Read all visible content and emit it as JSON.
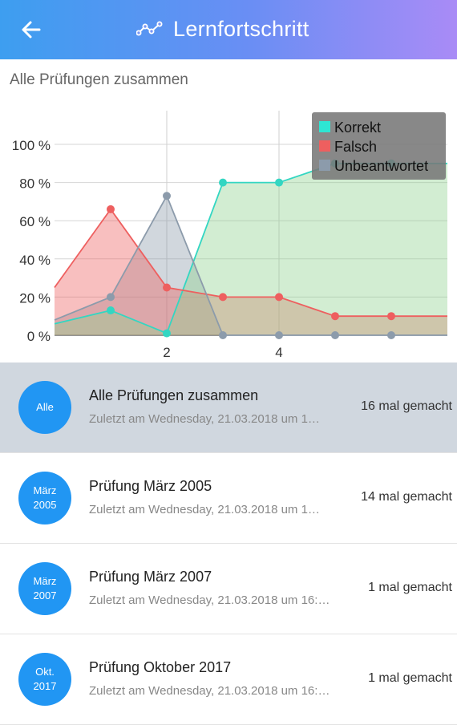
{
  "appbar": {
    "title": "Lernfortschritt"
  },
  "section": {
    "title": "Alle Prüfungen zusammen"
  },
  "chart_data": {
    "type": "area",
    "x": [
      0,
      1,
      2,
      3,
      4,
      5,
      6,
      7
    ],
    "xticks": [
      "2",
      "4"
    ],
    "yticks": [
      "0 %",
      "20 %",
      "40 %",
      "60 %",
      "80 %",
      "100 %"
    ],
    "ylim": [
      0,
      100
    ],
    "legend_position": "top-right",
    "grid": true,
    "series": [
      {
        "name": "Korrekt",
        "color": "#33d6c2",
        "values": [
          6,
          13,
          1,
          80,
          80,
          90,
          90,
          90
        ]
      },
      {
        "name": "Falsch",
        "color": "#ee5f5f",
        "values": [
          25,
          66,
          25,
          20,
          20,
          10,
          10,
          10
        ]
      },
      {
        "name": "Unbeantwortet",
        "color": "#8c9bab",
        "values": [
          8,
          20,
          73,
          0,
          0,
          0,
          0,
          0
        ]
      }
    ]
  },
  "exams": [
    {
      "avatar": [
        "Alle"
      ],
      "title": "Alle Prüfungen zusammen",
      "subtitle": "Zuletzt am Wednesday, 21.03.2018 um 1…",
      "count": "16 mal gemacht"
    },
    {
      "avatar": [
        "März",
        "2005"
      ],
      "title": "Prüfung März 2005",
      "subtitle": "Zuletzt am Wednesday, 21.03.2018 um 1…",
      "count": "14 mal gemacht"
    },
    {
      "avatar": [
        "März",
        "2007"
      ],
      "title": "Prüfung März 2007",
      "subtitle": "Zuletzt am Wednesday, 21.03.2018 um 16:…",
      "count": "1 mal gemacht"
    },
    {
      "avatar": [
        "Okt.",
        "2017"
      ],
      "title": "Prüfung Oktober 2017",
      "subtitle": "Zuletzt am Wednesday, 21.03.2018 um 16:…",
      "count": "1 mal gemacht"
    }
  ]
}
